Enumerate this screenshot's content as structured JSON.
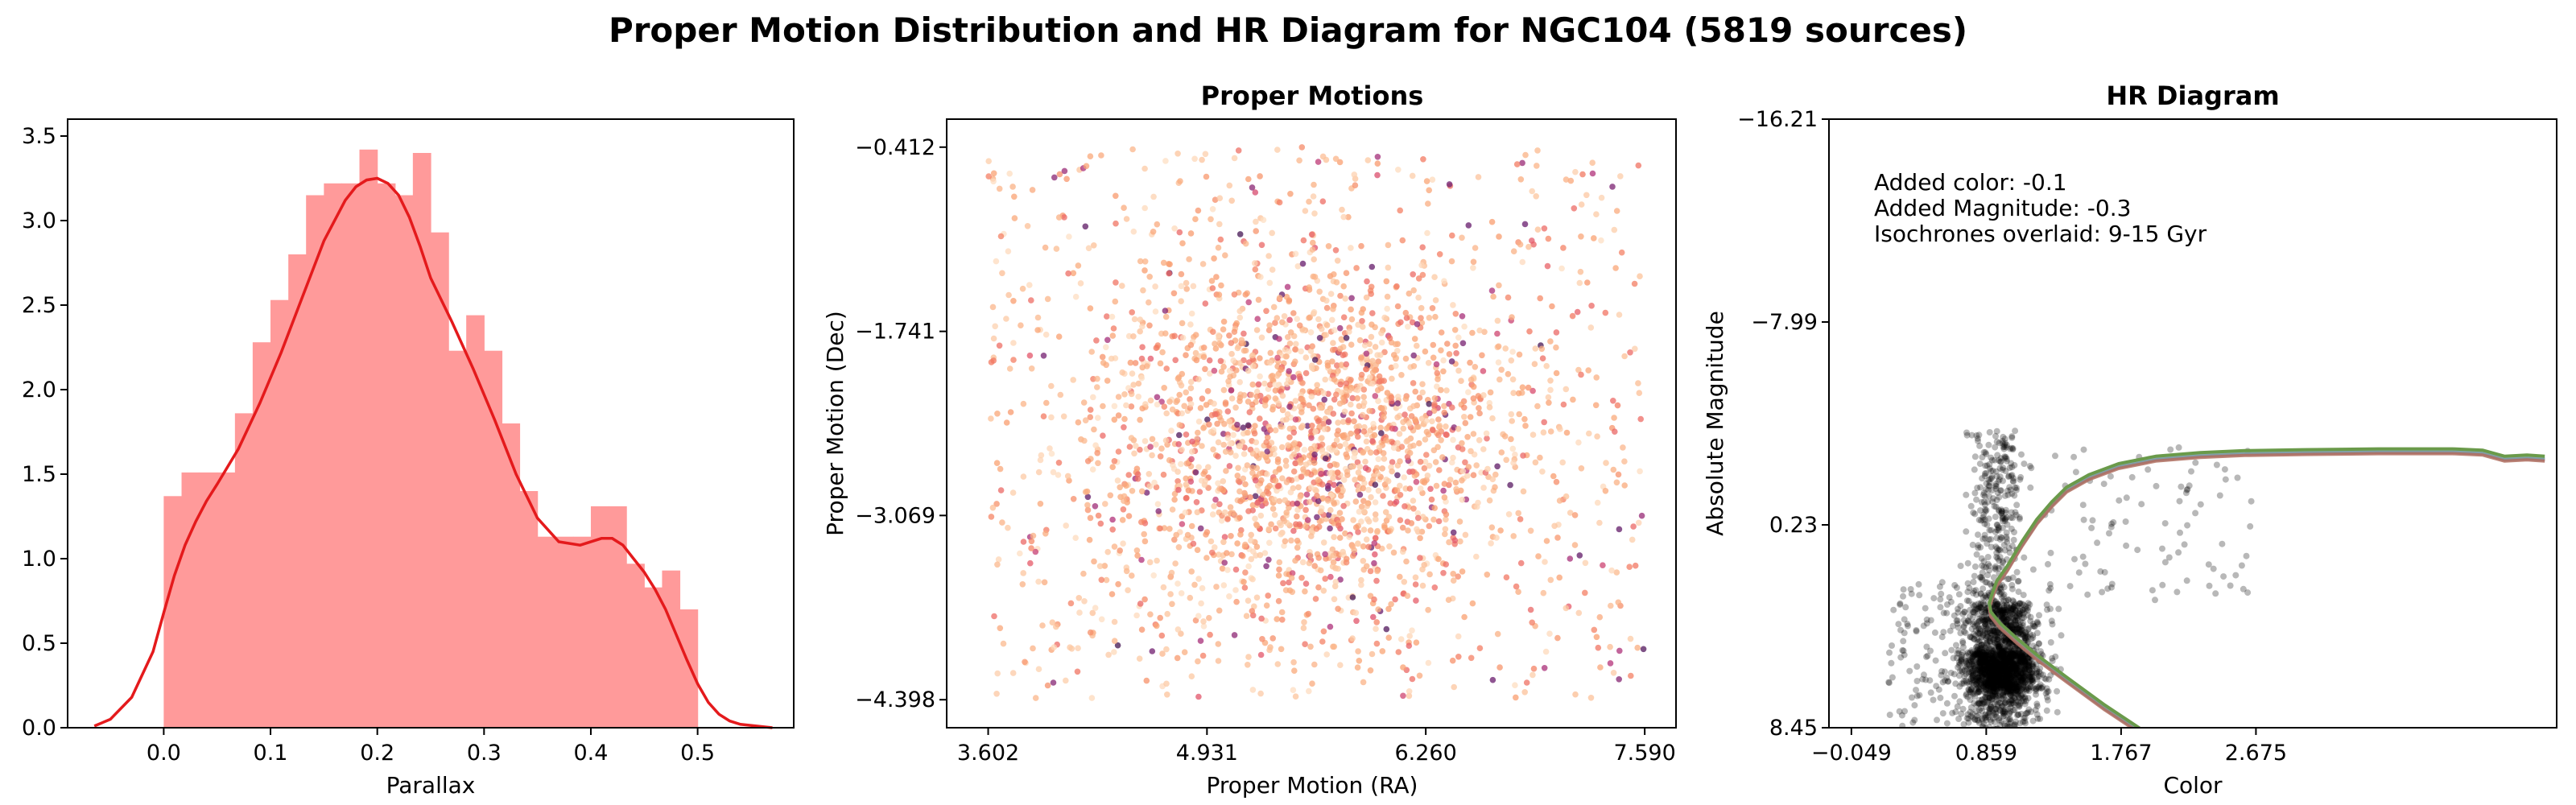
{
  "figure": {
    "title": "Proper Motion Distribution and HR Diagram for NGC104 (5819 sources)"
  },
  "chart_data": [
    {
      "type": "bar",
      "subtype": "histogram_with_kde",
      "title": "",
      "xlabel": "Parallax",
      "ylabel": "",
      "xlim": [
        -0.09,
        0.59
      ],
      "ylim": [
        0,
        3.6
      ],
      "xticks": [
        "0.0",
        "0.1",
        "0.2",
        "0.3",
        "0.4",
        "0.5"
      ],
      "yticks": [
        "0.0",
        "0.5",
        "1.0",
        "1.5",
        "2.0",
        "2.5",
        "3.0",
        "3.5"
      ],
      "bar_color": "#ff9a9a",
      "line_color": "#e41a1c",
      "bins": [
        {
          "x0": 0.0,
          "x1": 0.0167,
          "value": 1.37
        },
        {
          "x0": 0.0167,
          "x1": 0.0333,
          "value": 1.51
        },
        {
          "x0": 0.0333,
          "x1": 0.05,
          "value": 1.51
        },
        {
          "x0": 0.05,
          "x1": 0.0667,
          "value": 1.51
        },
        {
          "x0": 0.0667,
          "x1": 0.0833,
          "value": 1.86
        },
        {
          "x0": 0.0833,
          "x1": 0.1,
          "value": 2.28
        },
        {
          "x0": 0.1,
          "x1": 0.1167,
          "value": 2.53
        },
        {
          "x0": 0.1167,
          "x1": 0.1333,
          "value": 2.8
        },
        {
          "x0": 0.1333,
          "x1": 0.15,
          "value": 3.15
        },
        {
          "x0": 0.15,
          "x1": 0.1667,
          "value": 3.22
        },
        {
          "x0": 0.1667,
          "x1": 0.1833,
          "value": 3.22
        },
        {
          "x0": 0.1833,
          "x1": 0.2,
          "value": 3.42
        },
        {
          "x0": 0.2,
          "x1": 0.2167,
          "value": 3.22
        },
        {
          "x0": 0.2167,
          "x1": 0.2333,
          "value": 3.15
        },
        {
          "x0": 0.2333,
          "x1": 0.25,
          "value": 3.4
        },
        {
          "x0": 0.25,
          "x1": 0.2667,
          "value": 2.93
        },
        {
          "x0": 0.2667,
          "x1": 0.2833,
          "value": 2.23
        },
        {
          "x0": 0.2833,
          "x1": 0.3,
          "value": 2.44
        },
        {
          "x0": 0.3,
          "x1": 0.3167,
          "value": 2.23
        },
        {
          "x0": 0.3167,
          "x1": 0.3333,
          "value": 1.8
        },
        {
          "x0": 0.3333,
          "x1": 0.35,
          "value": 1.4
        },
        {
          "x0": 0.35,
          "x1": 0.3667,
          "value": 1.13
        },
        {
          "x0": 0.3667,
          "x1": 0.3833,
          "value": 1.13
        },
        {
          "x0": 0.3833,
          "x1": 0.4,
          "value": 1.13
        },
        {
          "x0": 0.4,
          "x1": 0.4167,
          "value": 1.31
        },
        {
          "x0": 0.4167,
          "x1": 0.4333,
          "value": 1.31
        },
        {
          "x0": 0.4333,
          "x1": 0.45,
          "value": 0.97
        },
        {
          "x0": 0.45,
          "x1": 0.4667,
          "value": 0.83
        },
        {
          "x0": 0.4667,
          "x1": 0.4833,
          "value": 0.93
        },
        {
          "x0": 0.4833,
          "x1": 0.5,
          "value": 0.7
        }
      ],
      "kde": {
        "x": [
          -0.065,
          -0.05,
          -0.03,
          -0.01,
          0.0,
          0.01,
          0.02,
          0.03,
          0.04,
          0.05,
          0.07,
          0.09,
          0.11,
          0.13,
          0.15,
          0.17,
          0.18,
          0.19,
          0.2,
          0.21,
          0.22,
          0.23,
          0.24,
          0.25,
          0.27,
          0.29,
          0.31,
          0.33,
          0.35,
          0.37,
          0.39,
          0.41,
          0.42,
          0.43,
          0.44,
          0.45,
          0.46,
          0.47,
          0.48,
          0.49,
          0.5,
          0.51,
          0.52,
          0.53,
          0.54,
          0.555,
          0.57
        ],
        "y": [
          0.01,
          0.05,
          0.18,
          0.45,
          0.68,
          0.9,
          1.08,
          1.22,
          1.34,
          1.44,
          1.65,
          1.92,
          2.22,
          2.55,
          2.88,
          3.12,
          3.2,
          3.24,
          3.25,
          3.22,
          3.15,
          3.02,
          2.85,
          2.66,
          2.4,
          2.12,
          1.82,
          1.5,
          1.24,
          1.1,
          1.08,
          1.12,
          1.12,
          1.08,
          1.0,
          0.92,
          0.82,
          0.7,
          0.55,
          0.4,
          0.26,
          0.15,
          0.08,
          0.04,
          0.02,
          0.01,
          0.0
        ]
      }
    },
    {
      "type": "scatter",
      "title": "Proper Motions",
      "xlabel": "Proper Motion (RA)",
      "ylabel": "Proper Motion (Dec)",
      "xlim": [
        3.35,
        7.78
      ],
      "ylim": [
        -4.6,
        -0.21
      ],
      "xticks": [
        "3.602",
        "4.931",
        "6.260",
        "7.590"
      ],
      "yticks": [
        "-0.412",
        "-1.741",
        "-3.069",
        "-4.398"
      ],
      "colormap": "magma_r",
      "center": {
        "ra": 5.55,
        "dec": -2.55
      },
      "spread": {
        "ra": 0.62,
        "dec": 0.62
      },
      "n_points": 5819
    },
    {
      "type": "scatter",
      "title": "HR Diagram",
      "xlabel": "Color",
      "ylabel": "Absolute Magnitude",
      "xlim": [
        -0.2,
        4.7
      ],
      "ylim": [
        8.45,
        -16.21
      ],
      "xticks": [
        "-0.049",
        "0.859",
        "1.767",
        "2.675"
      ],
      "yticks": [
        "-16.21",
        "-7.99",
        "0.23",
        "8.45"
      ],
      "point_color": "#000000",
      "annotations": [
        "Added color: -0.1",
        "Added Magnitude: -0.3",
        "Isochrones overlaid: 9-15 Gyr"
      ],
      "isochrone_colors": [
        "#6a9a4a",
        "#b07060",
        "#7aa0a8",
        "#8a6a8a"
      ],
      "isochrone": {
        "color": [
          4.62,
          4.5,
          4.35,
          4.2,
          4.0,
          3.5,
          3.0,
          2.6,
          2.3,
          2.0,
          1.75,
          1.55,
          1.4,
          1.3,
          1.2,
          1.1,
          1.0,
          0.93,
          0.9,
          0.88,
          0.89,
          0.95,
          1.06,
          1.2,
          1.4,
          1.65,
          1.9
        ],
        "mag": [
          -2.45,
          -2.5,
          -2.45,
          -2.7,
          -2.75,
          -2.75,
          -2.72,
          -2.68,
          -2.6,
          -2.45,
          -2.15,
          -1.7,
          -1.2,
          -0.6,
          0.1,
          1.0,
          2.0,
          2.6,
          3.1,
          3.5,
          3.85,
          4.3,
          4.9,
          5.6,
          6.5,
          7.6,
          8.6
        ]
      }
    }
  ]
}
